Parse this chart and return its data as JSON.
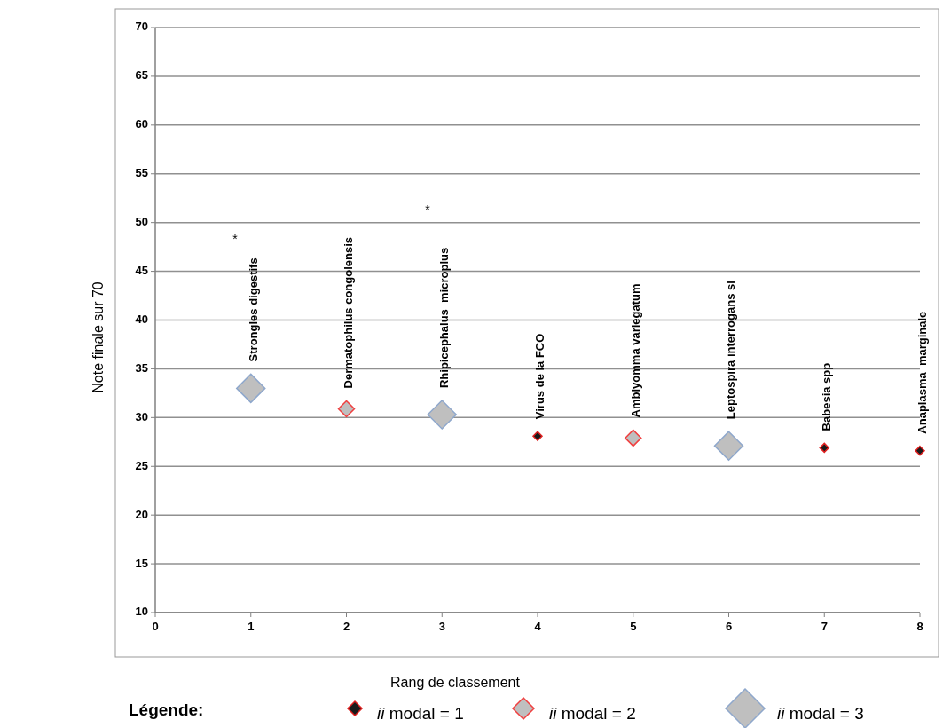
{
  "chart_data": {
    "type": "scatter",
    "xlabel": "Rang de classement",
    "ylabel": "Note finale sur 70",
    "legend_title": "Légende:",
    "xlim": [
      0,
      8
    ],
    "ylim": [
      10,
      70
    ],
    "xticks": [
      0,
      1,
      2,
      3,
      4,
      5,
      6,
      7,
      8
    ],
    "yticks": [
      10,
      15,
      20,
      25,
      30,
      35,
      40,
      45,
      50,
      55,
      60,
      65,
      70
    ],
    "grid": "y",
    "legend": "bottom",
    "marker": "diamond",
    "series": [
      {
        "name": "ii modal = 1",
        "color": "#1a1a1a",
        "x": [
          4,
          7,
          8
        ],
        "values": [
          28.1,
          26.9,
          26.6
        ]
      },
      {
        "name": "ii modal = 2",
        "color": "#bfbfbf",
        "x": [
          2,
          5
        ],
        "values": [
          30.9,
          27.9
        ]
      },
      {
        "name": "ii modal = 3",
        "color": "#bfbfbf",
        "x": [
          1,
          3,
          6
        ],
        "values": [
          33.0,
          30.3,
          27.1
        ]
      }
    ],
    "annotations": [
      {
        "text": "Strongles digestifs",
        "x": 1,
        "y": 33.0
      },
      {
        "text": "Dermatophilus congolensis",
        "x": 2,
        "y": 30.9
      },
      {
        "text": "Rhipicephalus  microplus",
        "x": 3,
        "y": 30.3
      },
      {
        "text": "Virus de la FCO",
        "x": 4,
        "y": 28.1
      },
      {
        "text": "Amblyomma variegatum",
        "x": 5,
        "y": 27.9
      },
      {
        "text": "Leptospira interrogans sl",
        "x": 6,
        "y": 27.1
      },
      {
        "text": "Babesia spp",
        "x": 7,
        "y": 26.9
      },
      {
        "text": "Anaplasma  marginale",
        "x": 8,
        "y": 26.6
      },
      "*",
      "*"
    ]
  }
}
